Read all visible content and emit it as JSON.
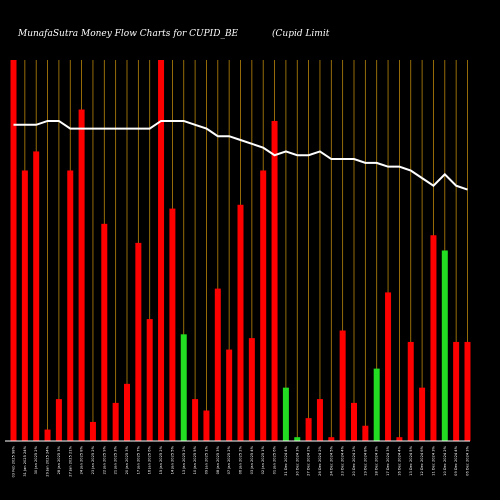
{
  "chart_data": {
    "type": "bar",
    "title": "MunafaSutra  Money Flow  Charts for CUPID_BE",
    "subtitle": "(Cupid Limit",
    "ylim": [
      0,
      100
    ],
    "grid": "vertical",
    "colors": {
      "background": "#000000",
      "up_bar": "#ff0000",
      "down_bar": "#22dd22",
      "grid": "#b8860b",
      "price_line": "#ffffff",
      "axis": "#ffffff",
      "text": "#ffffff"
    },
    "categories": [
      "03 Feb 2025 98%",
      "31 Jan 2025 24%",
      "30 Jan 2025 2%",
      "29 Jan 2025 24%",
      "28 Jan 2025 3%",
      "27 Jan 2025 21%",
      "24 Jan 2025 8%",
      "23 Jan 2025 2%",
      "22 Jan 2025 9%",
      "21 Jan 2025 3%",
      "20 Jan 2025 3%",
      "17 Jan 2025 7%",
      "16 Jan 2025 6%",
      "15 Jan 2025 2%",
      "14 Jan 2025 5%",
      "13 Jan 2025 2%",
      "10 Jan 2025 5%",
      "09 Jan 2025 1%",
      "08 Jan 2025 3%",
      "07 Jan 2025 2%",
      "06 Jan 2025 2%",
      "03 Jan 2025 4%",
      "02 Jan 2025 1%",
      "01 Jan 2025 6%",
      "31 Dec 2024 4%",
      "30 Dec 2024 3%",
      "27 Dec 2024 2%",
      "26 Dec 2024 2%",
      "24 Dec 2024 5%",
      "23 Dec 2024 4%",
      "20 Dec 2024 2%",
      "19 Dec 2024 8%",
      "18 Dec 2024 3%",
      "17 Dec 2024 3%",
      "16 Dec 2024 4%",
      "13 Dec 2024 5%",
      "12 Dec 2024 6%",
      "11 Dec 2024 3%",
      "10 Dec 2024 2%",
      "09 Dec 2024 4%",
      "06 Dec 2024 3%"
    ],
    "series": [
      {
        "values": [
          100,
          71,
          76,
          3,
          11,
          71,
          87,
          5,
          57,
          10,
          15,
          52,
          32,
          100,
          61,
          28,
          11,
          8,
          40,
          24,
          62,
          27,
          71,
          84,
          14,
          1,
          6,
          11,
          1,
          29,
          10,
          4,
          19,
          39,
          1,
          26,
          14,
          54,
          50,
          26,
          26
        ],
        "colors": [
          "up",
          "up",
          "up",
          "up",
          "up",
          "up",
          "up",
          "up",
          "up",
          "up",
          "up",
          "up",
          "up",
          "up",
          "up",
          "down",
          "up",
          "up",
          "up",
          "up",
          "up",
          "up",
          "up",
          "up",
          "down",
          "down",
          "up",
          "up",
          "up",
          "up",
          "up",
          "up",
          "down",
          "up",
          "up",
          "up",
          "up",
          "up",
          "down",
          "up",
          "up"
        ]
      },
      {
        "values": [
          83,
          83,
          83,
          84,
          84,
          82,
          82,
          82,
          82,
          82,
          82,
          82,
          82,
          84,
          84,
          84,
          83,
          82,
          80,
          80,
          79,
          78,
          77,
          75,
          76,
          75,
          75,
          76,
          74,
          74,
          74,
          73,
          73,
          72,
          72,
          71,
          69,
          67,
          70,
          67,
          66
        ]
      }
    ]
  }
}
